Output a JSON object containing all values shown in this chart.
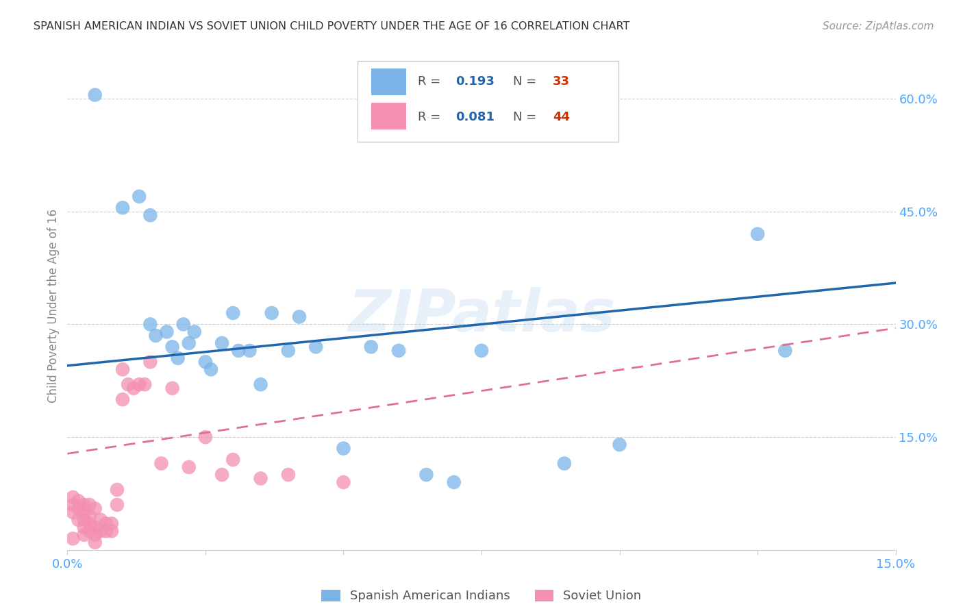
{
  "title": "SPANISH AMERICAN INDIAN VS SOVIET UNION CHILD POVERTY UNDER THE AGE OF 16 CORRELATION CHART",
  "source": "Source: ZipAtlas.com",
  "ylabel": "Child Poverty Under the Age of 16",
  "xlim": [
    0.0,
    0.15
  ],
  "ylim": [
    0.0,
    0.65
  ],
  "yticks": [
    0.15,
    0.3,
    0.45,
    0.6
  ],
  "ytick_labels": [
    "15.0%",
    "30.0%",
    "45.0%",
    "60.0%"
  ],
  "xticks": [
    0.0,
    0.025,
    0.05,
    0.075,
    0.1,
    0.125,
    0.15
  ],
  "xtick_labels": [
    "0.0%",
    "",
    "",
    "",
    "",
    "",
    "15.0%"
  ],
  "blue_label": "Spanish American Indians",
  "pink_label": "Soviet Union",
  "blue_R": "0.193",
  "blue_N": "33",
  "pink_R": "0.081",
  "pink_N": "44",
  "blue_color": "#7ab3e8",
  "pink_color": "#f48fb1",
  "blue_line_color": "#2166ac",
  "pink_line_color": "#e07090",
  "axis_label_color": "#4da6ff",
  "watermark": "ZIPatlas",
  "blue_x": [
    0.005,
    0.01,
    0.013,
    0.015,
    0.015,
    0.016,
    0.018,
    0.019,
    0.02,
    0.021,
    0.022,
    0.023,
    0.025,
    0.026,
    0.028,
    0.03,
    0.031,
    0.033,
    0.035,
    0.037,
    0.04,
    0.042,
    0.045,
    0.05,
    0.055,
    0.06,
    0.065,
    0.07,
    0.075,
    0.09,
    0.1,
    0.125,
    0.13
  ],
  "blue_y": [
    0.605,
    0.455,
    0.47,
    0.445,
    0.3,
    0.285,
    0.29,
    0.27,
    0.255,
    0.3,
    0.275,
    0.29,
    0.25,
    0.24,
    0.275,
    0.315,
    0.265,
    0.265,
    0.22,
    0.315,
    0.265,
    0.31,
    0.27,
    0.135,
    0.27,
    0.265,
    0.1,
    0.09,
    0.265,
    0.115,
    0.14,
    0.42,
    0.265
  ],
  "pink_x": [
    0.001,
    0.001,
    0.001,
    0.001,
    0.002,
    0.002,
    0.002,
    0.003,
    0.003,
    0.003,
    0.003,
    0.003,
    0.004,
    0.004,
    0.004,
    0.004,
    0.005,
    0.005,
    0.005,
    0.005,
    0.006,
    0.006,
    0.007,
    0.007,
    0.008,
    0.008,
    0.009,
    0.009,
    0.01,
    0.01,
    0.011,
    0.012,
    0.013,
    0.014,
    0.015,
    0.017,
    0.019,
    0.022,
    0.025,
    0.028,
    0.03,
    0.035,
    0.04,
    0.05
  ],
  "pink_y": [
    0.05,
    0.06,
    0.07,
    0.015,
    0.04,
    0.055,
    0.065,
    0.03,
    0.04,
    0.05,
    0.06,
    0.02,
    0.025,
    0.035,
    0.045,
    0.06,
    0.02,
    0.03,
    0.055,
    0.01,
    0.025,
    0.04,
    0.025,
    0.035,
    0.025,
    0.035,
    0.06,
    0.08,
    0.2,
    0.24,
    0.22,
    0.215,
    0.22,
    0.22,
    0.25,
    0.115,
    0.215,
    0.11,
    0.15,
    0.1,
    0.12,
    0.095,
    0.1,
    0.09
  ]
}
